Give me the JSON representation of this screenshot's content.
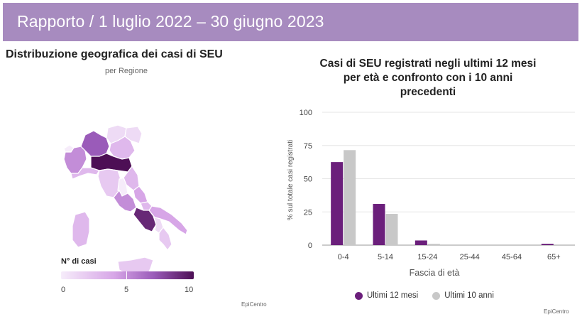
{
  "header": {
    "title": "Rapporto / 1 luglio 2022 – 30 giugno 2023"
  },
  "map": {
    "title": "Distribuzione geografica dei casi di SEU",
    "subtitle": "per Regione",
    "legend_title": "N° di casi",
    "legend_ticks": [
      "0",
      "5",
      "10"
    ],
    "credit": "EpiCentro",
    "regions": [
      {
        "name": "Valle d'Aosta",
        "cases": 0
      },
      {
        "name": "Piemonte",
        "cases": 5
      },
      {
        "name": "Lombardia",
        "cases": 7
      },
      {
        "name": "Trentino-Alto Adige",
        "cases": 1
      },
      {
        "name": "Veneto",
        "cases": 3
      },
      {
        "name": "Friuli-Venezia Giulia",
        "cases": 1
      },
      {
        "name": "Liguria",
        "cases": 3
      },
      {
        "name": "Emilia-Romagna",
        "cases": 10
      },
      {
        "name": "Toscana",
        "cases": 2
      },
      {
        "name": "Umbria",
        "cases": 0
      },
      {
        "name": "Marche",
        "cases": 3
      },
      {
        "name": "Lazio",
        "cases": 5
      },
      {
        "name": "Abruzzo",
        "cases": 4
      },
      {
        "name": "Molise",
        "cases": 3
      },
      {
        "name": "Campania",
        "cases": 9
      },
      {
        "name": "Puglia",
        "cases": 4
      },
      {
        "name": "Basilicata",
        "cases": 1
      },
      {
        "name": "Calabria",
        "cases": 2
      },
      {
        "name": "Sicilia",
        "cases": 2
      },
      {
        "name": "Sardegna",
        "cases": 3
      }
    ],
    "colors": {
      "low": "#f6ecfa",
      "high": "#4d0f55"
    }
  },
  "chart_data": {
    "type": "bar",
    "title_lines": [
      "Casi di SEU registrati negli ultimi 12 mesi",
      "per età e confronto con i 10 anni",
      "precedenti"
    ],
    "categories": [
      "0-4",
      "5-14",
      "15-24",
      "25-44",
      "45-64",
      "65+"
    ],
    "series": [
      {
        "name": "Ultimi 12 mesi",
        "color": "#6b1f7b",
        "values": [
          62.5,
          31,
          3.5,
          0,
          0,
          1
        ]
      },
      {
        "name": "Ultimi 10 anni",
        "color": "#c8c8c8",
        "values": [
          71.5,
          23.5,
          1,
          0.5,
          0.5,
          0.5
        ]
      }
    ],
    "xlabel": "Fascia di età",
    "ylabel": "% sul totale casi registrati",
    "ylim": [
      0,
      100
    ],
    "yticks": [
      0,
      25,
      50,
      75,
      100
    ],
    "credit": "EpiCentro"
  }
}
